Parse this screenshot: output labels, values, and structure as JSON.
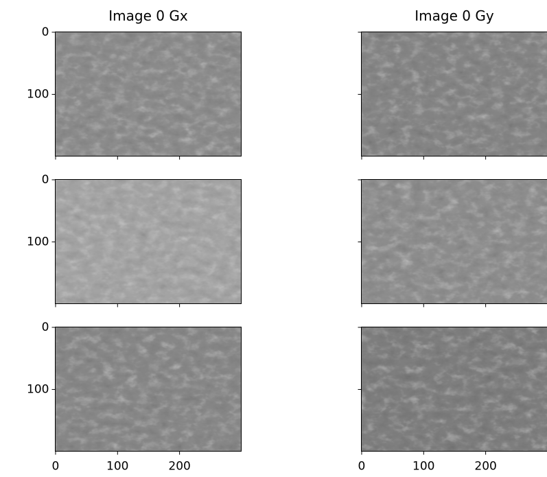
{
  "chart_data": [
    {
      "type": "image",
      "title": "Image 0 Gx",
      "xlim": [
        -0.5,
        299.5
      ],
      "ylim": [
        199.5,
        -0.5
      ],
      "xticks": [
        0,
        100,
        200
      ],
      "yticks": [
        0,
        100
      ],
      "xticklabels": false,
      "yticklabels": true,
      "tone": "#8c8c8c"
    },
    {
      "type": "image",
      "title": "Image 0 Gy",
      "xlim": [
        -0.5,
        299.5
      ],
      "ylim": [
        199.5,
        -0.5
      ],
      "xticks": [
        0,
        100,
        200
      ],
      "yticks": [
        0,
        100
      ],
      "xticklabels": false,
      "yticklabels": false,
      "tone": "#858585"
    },
    {
      "type": "image",
      "xlim": [
        -0.5,
        299.5
      ],
      "ylim": [
        199.5,
        -0.5
      ],
      "xticks": [
        0,
        100,
        200
      ],
      "yticks": [
        0,
        100
      ],
      "xticklabels": false,
      "yticklabels": true,
      "tone": "#a4a4a4"
    },
    {
      "type": "image",
      "xlim": [
        -0.5,
        299.5
      ],
      "ylim": [
        199.5,
        -0.5
      ],
      "xticks": [
        0,
        100,
        200
      ],
      "yticks": [
        0,
        100
      ],
      "xticklabels": false,
      "yticklabels": false,
      "tone": "#8e8e8e"
    },
    {
      "type": "image",
      "xlim": [
        -0.5,
        299.5
      ],
      "ylim": [
        199.5,
        -0.5
      ],
      "xticks": [
        0,
        100,
        200
      ],
      "yticks": [
        0,
        100
      ],
      "xticklabels": true,
      "yticklabels": true,
      "tone": "#888888"
    },
    {
      "type": "image",
      "xlim": [
        -0.5,
        299.5
      ],
      "ylim": [
        199.5,
        -0.5
      ],
      "xticks": [
        0,
        100,
        200
      ],
      "yticks": [
        0,
        100
      ],
      "xticklabels": true,
      "yticklabels": false,
      "tone": "#7e7e7e"
    }
  ]
}
